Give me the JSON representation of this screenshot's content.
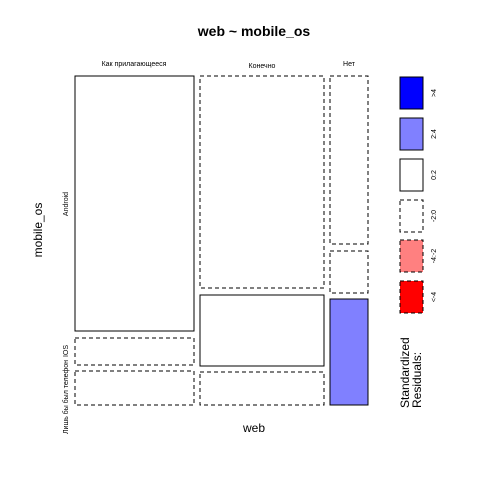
{
  "chart_data": {
    "type": "mosaic",
    "title": "web ~ mobile_os",
    "xlabel": "web",
    "ylabel": "mobile_os",
    "x_categories": [
      "Как прилагающееся",
      "Конечно",
      "Нет"
    ],
    "y_categories_left": [
      "Android",
      "IOS",
      "Лишь бы был телефон"
    ],
    "cells": [
      {
        "web": "Как прилагающееся",
        "mobile_os": "Android",
        "residual_class": "0:2"
      },
      {
        "web": "Как прилагающееся",
        "mobile_os": "IOS",
        "residual_class": "-2:0"
      },
      {
        "web": "Как прилагающееся",
        "mobile_os": "Лишь бы был телефон",
        "residual_class": "-2:0"
      },
      {
        "web": "Конечно",
        "mobile_os": "Android",
        "residual_class": "-2:0"
      },
      {
        "web": "Конечно",
        "mobile_os": "IOS",
        "residual_class": "0:2"
      },
      {
        "web": "Конечно",
        "mobile_os": "Лишь бы был телефон",
        "residual_class": "-2:0"
      },
      {
        "web": "Нет",
        "mobile_os": "Android",
        "residual_class": "-2:0"
      },
      {
        "web": "Нет",
        "mobile_os": "IOS",
        "residual_class": "-2:0"
      },
      {
        "web": "Нет",
        "mobile_os": "Лишь бы был телефон",
        "residual_class": "2:4"
      }
    ],
    "legend": {
      "title_line1": "Standardized",
      "title_line2": "Residuals:",
      "items": [
        {
          "label": ">4",
          "fill": "#0000FF",
          "dashed": false
        },
        {
          "label": "2:4",
          "fill": "#8080FF",
          "dashed": false
        },
        {
          "label": "0:2",
          "fill": "#FFFFFF",
          "dashed": false
        },
        {
          "label": "-2:0",
          "fill": "#FFFFFF",
          "dashed": true
        },
        {
          "label": "-4:-2",
          "fill": "#FF8080",
          "dashed": true
        },
        {
          "label": "<-4",
          "fill": "#FF0000",
          "dashed": true
        }
      ]
    }
  }
}
